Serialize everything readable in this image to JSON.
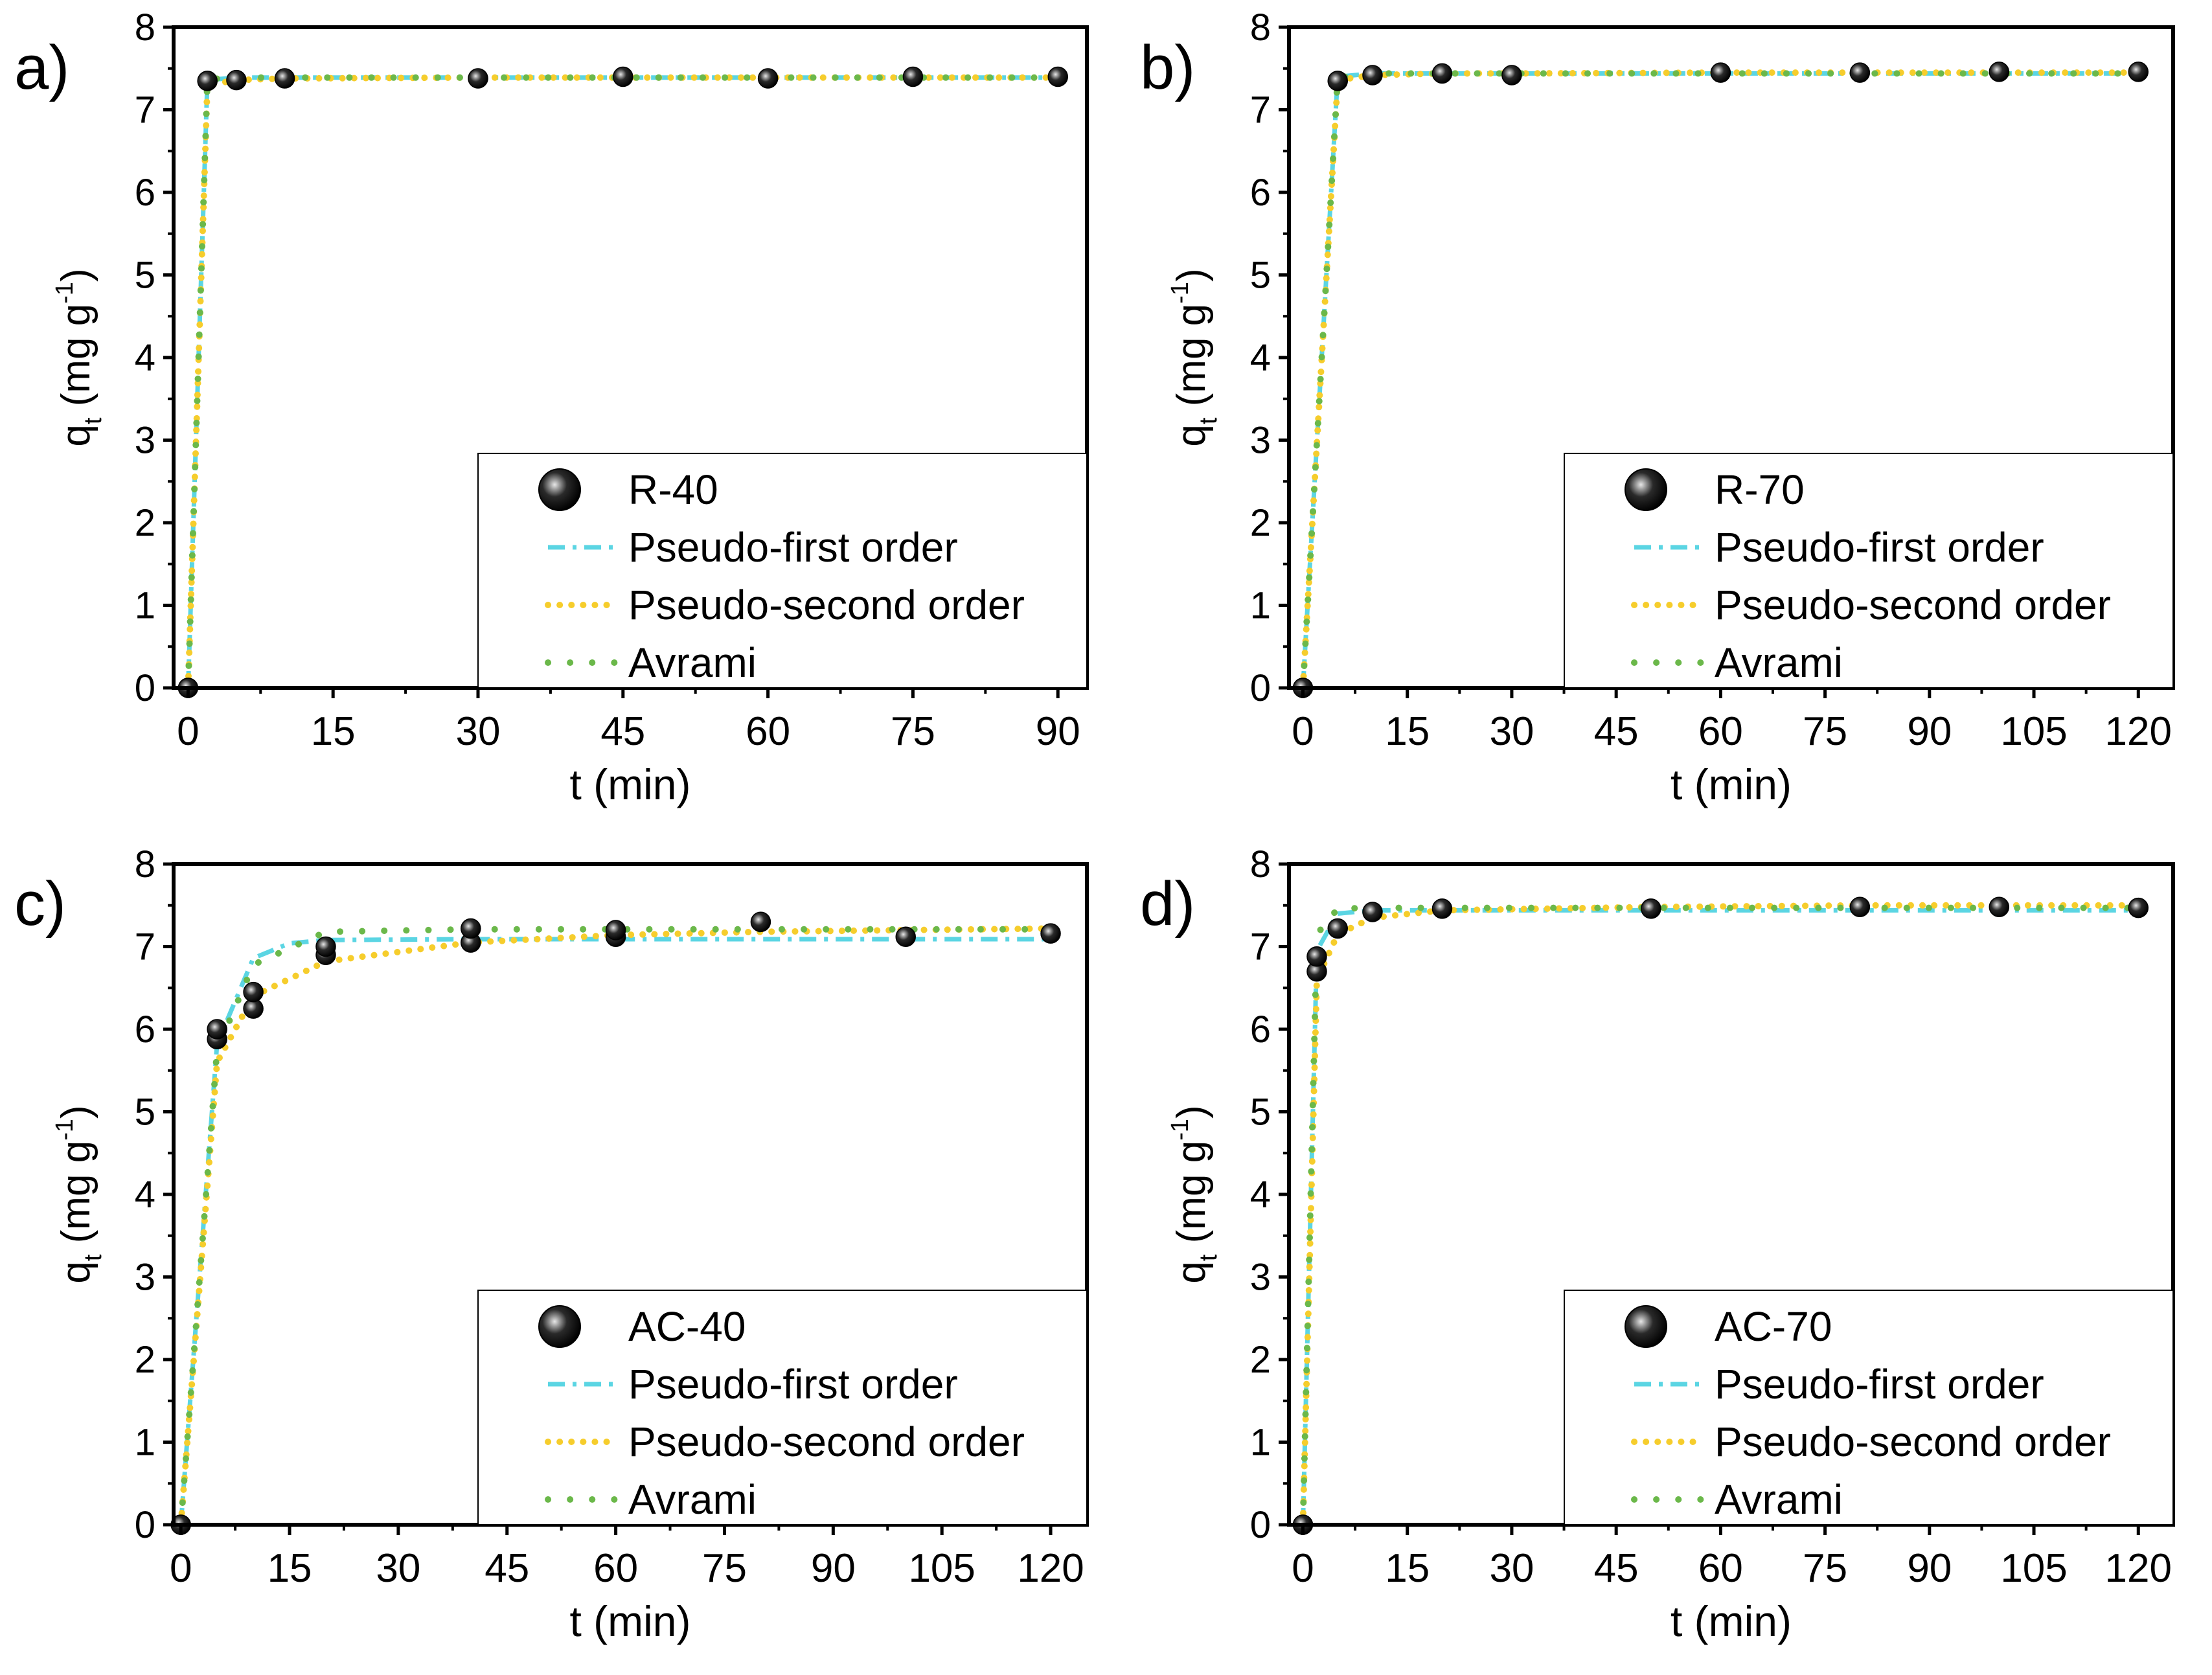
{
  "colors": {
    "frame": "#000000",
    "marker_fill": "#111111",
    "marker_highlight": "#d8d8d8",
    "pfo": "#5bd5e3",
    "pso": "#f6cd2c",
    "avrami": "#6bb84a",
    "background": "#ffffff"
  },
  "chart_data": [
    {
      "type": "scatter",
      "panel_label": "a)",
      "xlabel": "t (min)",
      "ylabel_main": "q",
      "ylabel_sub": "t",
      "ylabel_unit": "(mg g",
      "ylabel_sup": "-1",
      "ylabel_close": ")",
      "xlim": [
        -1.5,
        93
      ],
      "ylim": [
        0,
        8
      ],
      "x_ticks": [
        0,
        15,
        30,
        45,
        60,
        75,
        90
      ],
      "x_tick_labels": [
        "0",
        "15",
        "30",
        "45",
        "60",
        "75",
        "90"
      ],
      "y_ticks": [
        0,
        1,
        2,
        3,
        4,
        5,
        6,
        7,
        8
      ],
      "y_tick_labels": [
        "0",
        "1",
        "2",
        "3",
        "4",
        "5",
        "6",
        "7",
        "8"
      ],
      "legend_position": "bottom-right",
      "legend": [
        "R-40",
        "Pseudo-first order",
        "Pseudo-second order",
        "Avrami"
      ],
      "experimental": {
        "name": "R-40",
        "x": [
          0,
          2,
          5,
          10,
          30,
          45,
          60,
          75,
          90
        ],
        "y": [
          0,
          7.35,
          7.36,
          7.38,
          7.38,
          7.4,
          7.38,
          7.4,
          7.4
        ]
      },
      "series": [
        {
          "name": "Pseudo-first order",
          "style": "dash-dot",
          "x": [
            0,
            2,
            5,
            10,
            30,
            45,
            60,
            75,
            90
          ],
          "y": [
            0,
            7.36,
            7.39,
            7.39,
            7.39,
            7.39,
            7.39,
            7.39,
            7.39
          ]
        },
        {
          "name": "Pseudo-second order",
          "style": "dotted",
          "x": [
            0,
            2,
            5,
            10,
            30,
            45,
            60,
            75,
            90
          ],
          "y": [
            0,
            7.3,
            7.36,
            7.38,
            7.39,
            7.39,
            7.39,
            7.39,
            7.39
          ]
        },
        {
          "name": "Avrami",
          "style": "sparse-dotted",
          "x": [
            0,
            2,
            5,
            10,
            30,
            45,
            60,
            75,
            90
          ],
          "y": [
            0,
            7.37,
            7.39,
            7.39,
            7.39,
            7.39,
            7.39,
            7.39,
            7.39
          ]
        }
      ]
    },
    {
      "type": "scatter",
      "panel_label": "b)",
      "xlabel": "t (min)",
      "ylabel_main": "q",
      "ylabel_sub": "t",
      "ylabel_unit": "(mg g",
      "ylabel_sup": "-1",
      "ylabel_close": ")",
      "xlim": [
        -2,
        125
      ],
      "ylim": [
        0,
        8
      ],
      "x_ticks": [
        0,
        15,
        30,
        45,
        60,
        75,
        90,
        105,
        120
      ],
      "x_tick_labels": [
        "0",
        "15",
        "30",
        "45",
        "60",
        "75",
        "90",
        "105",
        "120"
      ],
      "y_ticks": [
        0,
        1,
        2,
        3,
        4,
        5,
        6,
        7,
        8
      ],
      "y_tick_labels": [
        "0",
        "1",
        "2",
        "3",
        "4",
        "5",
        "6",
        "7",
        "8"
      ],
      "legend_position": "bottom-right",
      "legend": [
        "R-70",
        "Pseudo-first order",
        "Pseudo-second order",
        "Avrami"
      ],
      "experimental": {
        "name": "R-70",
        "x": [
          0,
          5,
          10,
          20,
          30,
          60,
          80,
          100,
          120
        ],
        "y": [
          0,
          7.35,
          7.42,
          7.44,
          7.42,
          7.45,
          7.45,
          7.46,
          7.46
        ]
      },
      "series": [
        {
          "name": "Pseudo-first order",
          "style": "dash-dot",
          "x": [
            0,
            5,
            10,
            20,
            30,
            60,
            80,
            100,
            120
          ],
          "y": [
            0,
            7.4,
            7.44,
            7.44,
            7.44,
            7.44,
            7.44,
            7.44,
            7.44
          ]
        },
        {
          "name": "Pseudo-second order",
          "style": "dotted",
          "x": [
            0,
            5,
            10,
            20,
            30,
            60,
            80,
            100,
            120
          ],
          "y": [
            0,
            7.36,
            7.42,
            7.44,
            7.44,
            7.45,
            7.45,
            7.45,
            7.45
          ]
        },
        {
          "name": "Avrami",
          "style": "sparse-dotted",
          "x": [
            0,
            5,
            10,
            20,
            30,
            60,
            80,
            100,
            120
          ],
          "y": [
            0,
            7.39,
            7.44,
            7.44,
            7.44,
            7.44,
            7.44,
            7.44,
            7.44
          ]
        }
      ]
    },
    {
      "type": "scatter",
      "panel_label": "c)",
      "xlabel": "t (min)",
      "ylabel_main": "q",
      "ylabel_sub": "t",
      "ylabel_unit": "(mg g",
      "ylabel_sup": "-1",
      "ylabel_close": ")",
      "xlim": [
        -1,
        125
      ],
      "ylim": [
        0,
        8
      ],
      "x_ticks": [
        0,
        15,
        30,
        45,
        60,
        75,
        90,
        105,
        120
      ],
      "x_tick_labels": [
        "0",
        "15",
        "30",
        "45",
        "60",
        "75",
        "90",
        "105",
        "120"
      ],
      "y_ticks": [
        0,
        1,
        2,
        3,
        4,
        5,
        6,
        7,
        8
      ],
      "y_tick_labels": [
        "0",
        "1",
        "2",
        "3",
        "4",
        "5",
        "6",
        "7",
        "8"
      ],
      "legend_position": "bottom-right",
      "legend": [
        "AC-40",
        "Pseudo-first order",
        "Pseudo-second order",
        "Avrami"
      ],
      "experimental": {
        "name": "AC-40",
        "x": [
          0,
          5,
          5,
          10,
          10,
          20,
          20,
          40,
          40,
          60,
          60,
          80,
          100,
          120
        ],
        "y": [
          0,
          5.88,
          6.0,
          6.25,
          6.45,
          6.9,
          7.0,
          7.05,
          7.22,
          7.12,
          7.2,
          7.3,
          7.12,
          7.16
        ]
      },
      "series": [
        {
          "name": "Pseudo-first order",
          "style": "dash-dot",
          "x": [
            0,
            5,
            10,
            15,
            20,
            40,
            60,
            80,
            100,
            120
          ],
          "y": [
            0,
            5.82,
            6.86,
            7.04,
            7.08,
            7.09,
            7.09,
            7.09,
            7.09,
            7.09
          ]
        },
        {
          "name": "Pseudo-second order",
          "style": "dotted",
          "x": [
            0,
            5,
            10,
            20,
            40,
            60,
            80,
            100,
            120
          ],
          "y": [
            0,
            5.6,
            6.4,
            6.82,
            7.05,
            7.14,
            7.18,
            7.2,
            7.22
          ]
        },
        {
          "name": "Avrami",
          "style": "sparse-dotted",
          "x": [
            0,
            5,
            10,
            20,
            40,
            60,
            80,
            100,
            120
          ],
          "y": [
            0,
            5.75,
            6.78,
            7.18,
            7.21,
            7.21,
            7.21,
            7.21,
            7.21
          ]
        }
      ]
    },
    {
      "type": "scatter",
      "panel_label": "d)",
      "xlabel": "t (min)",
      "ylabel_main": "q",
      "ylabel_sub": "t",
      "ylabel_unit": "(mg g",
      "ylabel_sup": "-1",
      "ylabel_close": ")",
      "xlim": [
        -2,
        125
      ],
      "ylim": [
        0,
        8
      ],
      "x_ticks": [
        0,
        15,
        30,
        45,
        60,
        75,
        90,
        105,
        120
      ],
      "x_tick_labels": [
        "0",
        "15",
        "30",
        "45",
        "60",
        "75",
        "90",
        "105",
        "120"
      ],
      "y_ticks": [
        0,
        1,
        2,
        3,
        4,
        5,
        6,
        7,
        8
      ],
      "y_tick_labels": [
        "0",
        "1",
        "2",
        "3",
        "4",
        "5",
        "6",
        "7",
        "8"
      ],
      "legend_position": "bottom-right",
      "legend": [
        "AC-70",
        "Pseudo-first order",
        "Pseudo-second order",
        "Avrami"
      ],
      "experimental": {
        "name": "AC-70",
        "x": [
          0,
          2,
          2,
          5,
          10,
          20,
          50,
          80,
          100,
          120
        ],
        "y": [
          0,
          6.7,
          6.88,
          7.22,
          7.42,
          7.46,
          7.46,
          7.48,
          7.48,
          7.47
        ]
      },
      "series": [
        {
          "name": "Pseudo-first order",
          "style": "dash-dot",
          "x": [
            0,
            2,
            5,
            10,
            20,
            50,
            80,
            100,
            120
          ],
          "y": [
            0,
            6.95,
            7.4,
            7.44,
            7.44,
            7.44,
            7.44,
            7.44,
            7.44
          ]
        },
        {
          "name": "Pseudo-second order",
          "style": "dotted",
          "x": [
            0,
            2,
            5,
            10,
            20,
            50,
            80,
            100,
            120
          ],
          "y": [
            0,
            6.6,
            7.15,
            7.35,
            7.44,
            7.48,
            7.5,
            7.5,
            7.5
          ]
        },
        {
          "name": "Avrami",
          "style": "sparse-dotted",
          "x": [
            0,
            2,
            5,
            10,
            20,
            50,
            80,
            100,
            120
          ],
          "y": [
            0,
            7.15,
            7.46,
            7.47,
            7.47,
            7.47,
            7.47,
            7.47,
            7.47
          ]
        }
      ]
    }
  ]
}
